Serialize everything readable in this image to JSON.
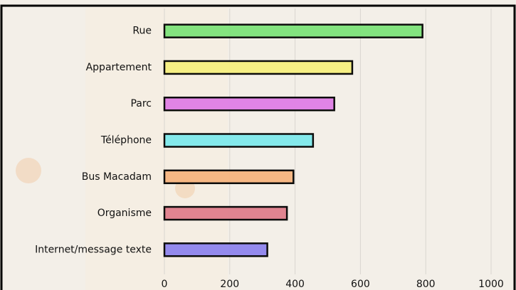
{
  "chart_data": {
    "type": "barh",
    "categories": [
      "Rue",
      "Appartement",
      "Parc",
      "Téléphone",
      "Bus Macadam",
      "Organisme",
      "Internet/message texte"
    ],
    "values": [
      790,
      575,
      520,
      455,
      395,
      375,
      315
    ],
    "colors": [
      "#7ee37a",
      "#f7f07f",
      "#e07fe6",
      "#7fe9ec",
      "#f7b57f",
      "#e07f8c",
      "#8f85ee"
    ],
    "xlim": [
      0,
      1000
    ],
    "xticks": [
      0,
      200,
      400,
      600,
      800,
      1000
    ],
    "grid": true
  }
}
